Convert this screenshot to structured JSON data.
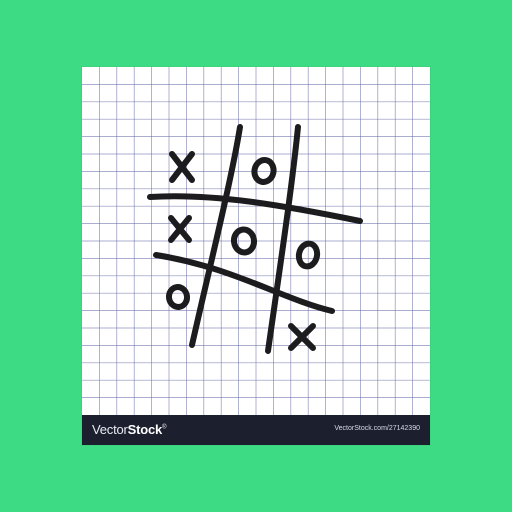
{
  "colors": {
    "background": "#3ddc84",
    "paper": "#ffffff",
    "grid": "#6a6ea8",
    "ink": "#1c1c1e",
    "footer": "#1b1f2e"
  },
  "board": {
    "cells": [
      "X",
      "O",
      "",
      "X",
      "O",
      "O",
      "O",
      "",
      "X"
    ]
  },
  "watermark": {
    "brand_light": "Vector",
    "brand_bold": "Stock",
    "trademark": "®",
    "credit": "VectorStock.com/27142390"
  }
}
